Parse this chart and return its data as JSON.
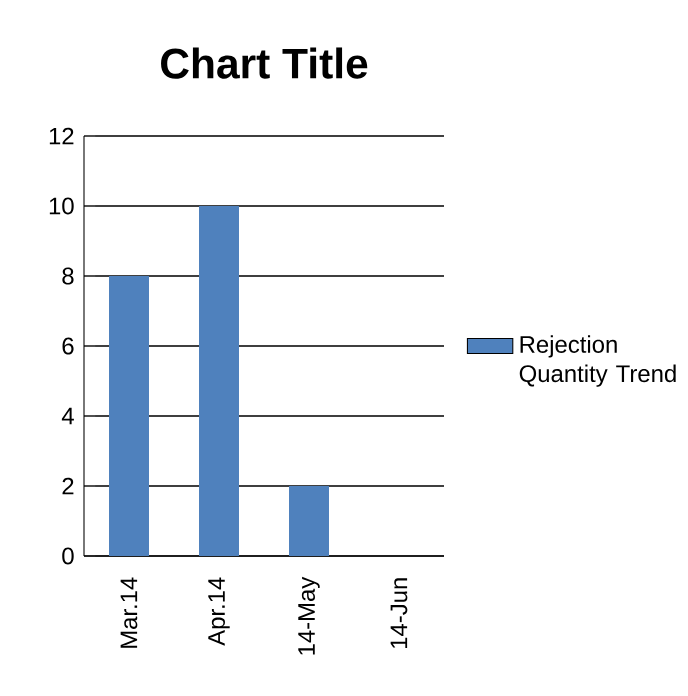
{
  "chart_data": {
    "type": "bar",
    "title": "Chart Title",
    "categories": [
      "Mar.14",
      "Apr.14",
      "14-May",
      "14-Jun"
    ],
    "series": [
      {
        "name": "Rejection Quantity Trend",
        "color": "#4f81bd",
        "values": [
          8,
          10,
          2,
          0
        ]
      }
    ],
    "ylim": [
      0,
      12
    ],
    "yticks": [
      0,
      2,
      4,
      6,
      8,
      10,
      12
    ],
    "grid": "y",
    "legend": "right"
  }
}
